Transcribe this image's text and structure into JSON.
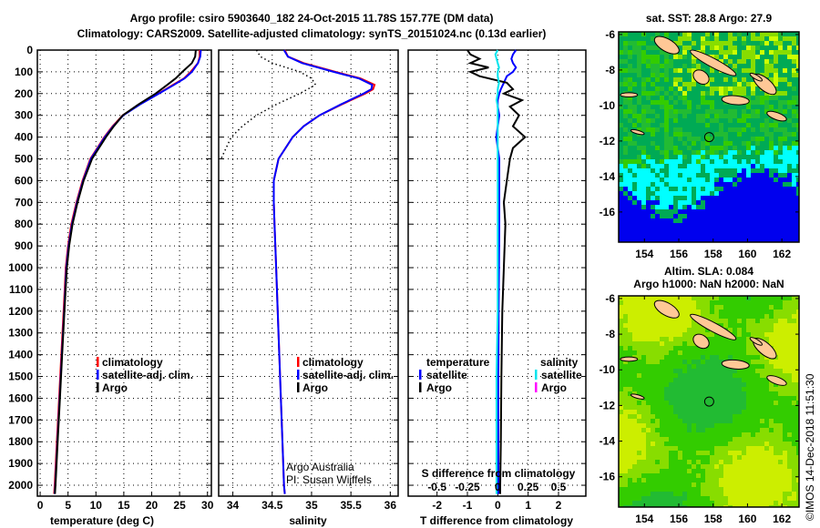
{
  "header": {
    "title1": "Argo profile: csiro 5903640_182 24-Oct-2015 11.78S 157.77E (DM data)",
    "title2": "Climatology: CARS2009. Satellite-adjusted climatology: synTS_20151024.nc (0.13d earlier)"
  },
  "colors": {
    "climatology": "#ff0000",
    "satellite": "#0000ff",
    "argo": "#000000",
    "sal_satellite": "#00e5ee",
    "sal_argo": "#ff00ff"
  },
  "chart_data": [
    {
      "type": "line",
      "title": "",
      "xlabel": "temperature (deg C)",
      "ylabel": "",
      "xlim": [
        -0.5,
        30.7
      ],
      "ylim": [
        2050,
        0
      ],
      "xticks": [
        "0",
        "5",
        "10",
        "15",
        "20",
        "25",
        "30"
      ],
      "yticks": [
        "0",
        "100",
        "200",
        "300",
        "400",
        "500",
        "600",
        "700",
        "800",
        "900",
        "1000",
        "1100",
        "1200",
        "1300",
        "1400",
        "1500",
        "1600",
        "1700",
        "1800",
        "1900",
        "2000"
      ],
      "grid": true,
      "legend": [
        "climatology",
        "satellite-adj. clim.",
        "Argo"
      ],
      "depth": [
        0,
        30,
        60,
        100,
        130,
        160,
        200,
        250,
        300,
        350,
        400,
        500,
        600,
        700,
        800,
        900,
        1000,
        1200,
        1400,
        1600,
        1800,
        2000,
        2040
      ],
      "series": [
        {
          "name": "climatology",
          "values": [
            28.6,
            28.6,
            28.3,
            27.0,
            25.8,
            23.8,
            21.2,
            17.8,
            14.8,
            13.0,
            11.5,
            9.0,
            7.6,
            6.5,
            5.6,
            5.0,
            4.6,
            4.2,
            3.8,
            3.4,
            3.0,
            2.6,
            2.5
          ]
        },
        {
          "name": "satellite-adj. clim.",
          "values": [
            28.8,
            28.7,
            28.3,
            27.2,
            25.9,
            24.0,
            21.3,
            17.9,
            14.9,
            13.1,
            11.6,
            9.1,
            7.7,
            6.6,
            5.7,
            5.1,
            4.7,
            4.3,
            3.9,
            3.5,
            3.1,
            2.7,
            2.6
          ]
        },
        {
          "name": "Argo",
          "values": [
            27.9,
            27.8,
            27.2,
            25.5,
            24.3,
            22.8,
            20.7,
            17.6,
            14.8,
            13.2,
            11.8,
            9.3,
            7.8,
            6.7,
            5.8,
            5.2,
            4.8,
            4.35,
            3.95,
            3.55,
            3.15,
            2.75,
            2.65
          ]
        }
      ]
    },
    {
      "type": "line",
      "xlabel": "salinity",
      "xlim": [
        33.82,
        36.1
      ],
      "ylim": [
        2050,
        0
      ],
      "xticks": [
        "34",
        "34.5",
        "35",
        "35.5",
        "36"
      ],
      "grid": true,
      "legend": [
        "climatology",
        "satellite-adj. clim.",
        "Argo"
      ],
      "depth": [
        0,
        30,
        60,
        100,
        130,
        160,
        180,
        200,
        250,
        300,
        350,
        400,
        500,
        600,
        700,
        800,
        1000,
        1200,
        1500,
        1800,
        2000,
        2040
      ],
      "series": [
        {
          "name": "climatology",
          "values": [
            34.66,
            34.7,
            34.9,
            35.3,
            35.62,
            35.8,
            35.78,
            35.68,
            35.38,
            35.1,
            34.9,
            34.76,
            34.58,
            34.52,
            34.52,
            34.53,
            34.55,
            34.57,
            34.6,
            34.63,
            34.65,
            34.66
          ]
        },
        {
          "name": "satellite-adj. clim.",
          "values": [
            34.65,
            34.7,
            34.88,
            35.28,
            35.6,
            35.77,
            35.76,
            35.66,
            35.37,
            35.1,
            34.9,
            34.76,
            34.58,
            34.52,
            34.52,
            34.53,
            34.55,
            34.57,
            34.6,
            34.63,
            34.65,
            34.66
          ]
        },
        {
          "name": "Argo",
          "style": "dotted",
          "values": [
            34.3,
            34.35,
            34.5,
            34.85,
            35.0,
            35.05,
            34.95,
            34.85,
            34.55,
            34.3,
            34.12,
            33.98,
            33.85,
            null,
            null,
            null,
            null,
            null,
            null,
            null,
            null,
            null
          ]
        }
      ],
      "annotations": [
        "Argo Australia",
        "PI: Susan Wijffels"
      ]
    },
    {
      "type": "line",
      "xlabel": "T difference from climatology",
      "xlim": [
        -2.95,
        2.9
      ],
      "xticks": [
        "-2",
        "-1",
        "0",
        "1",
        "2"
      ],
      "secondary_xlabel": "S difference from climatology",
      "secondary_xticks": [
        "-0.5",
        "-0.25",
        "0",
        "0.25",
        "0.5"
      ],
      "grid": true,
      "legend_temperature": {
        "title": "temperature",
        "items": [
          "satellite",
          "Argo"
        ]
      },
      "legend_salinity": {
        "title": "salinity",
        "items": [
          "satellite",
          "Argo"
        ]
      },
      "depth": [
        0,
        20,
        40,
        60,
        80,
        100,
        120,
        150,
        180,
        200,
        230,
        260,
        300,
        350,
        400,
        450,
        500,
        600,
        700,
        800,
        1000,
        1200,
        1500,
        1800,
        2000,
        2040
      ],
      "series": [
        {
          "name": "temperature satellite",
          "values": [
            0.6,
            0.5,
            0.45,
            0.5,
            0.6,
            0.5,
            0.3,
            0.2,
            0.1,
            0.05,
            0.0,
            0.0,
            0.05,
            0.0,
            -0.05,
            0.0,
            0.05,
            0.05,
            0.05,
            0.05,
            0.04,
            0.03,
            0.02,
            0.02,
            0.02,
            0.02
          ]
        },
        {
          "name": "temperature Argo",
          "values": [
            -1.0,
            -0.9,
            -0.6,
            -0.9,
            -0.3,
            -0.9,
            -0.6,
            0.3,
            0.5,
            0.2,
            0.8,
            0.4,
            0.7,
            0.5,
            0.9,
            0.5,
            0.4,
            0.3,
            0.2,
            0.25,
            0.2,
            0.15,
            0.12,
            0.1,
            0.08,
            0.08
          ]
        },
        {
          "name": "salinity satellite",
          "values": [
            0.0,
            -0.02,
            -0.01,
            0.0,
            0.01,
            0.0,
            0.0,
            0.01,
            0.0,
            0.0,
            -0.01,
            0.0,
            0.0,
            0.0,
            0.0,
            0.0,
            0.0,
            0.0,
            0.0,
            0.0,
            0.0,
            0.0,
            -0.01,
            -0.01,
            -0.01,
            -0.01
          ]
        }
      ]
    },
    {
      "type": "heatmap",
      "title": "sat. SST: 28.8 Argo: 27.9",
      "xlim": [
        152.5,
        163.0
      ],
      "ylim": [
        -17.7,
        -5.85
      ],
      "xticks": [
        "154",
        "156",
        "158",
        "160",
        "162"
      ],
      "yticks": [
        "-6",
        "-8",
        "-10",
        "-12",
        "-14",
        "-16"
      ],
      "marker": {
        "lon": 157.77,
        "lat": -11.78
      }
    },
    {
      "type": "heatmap",
      "title": "Altim. SLA: 0.084",
      "subtitle": "Argo h1000: NaN h2000: NaN",
      "xlim": [
        152.5,
        163.0
      ],
      "ylim": [
        -17.7,
        -5.85
      ],
      "xticks": [
        "154",
        "156",
        "158",
        "160",
        "162"
      ],
      "yticks": [
        "-6",
        "-8",
        "-10",
        "-12",
        "-14",
        "-16"
      ],
      "marker": {
        "lon": 157.77,
        "lat": -11.78
      }
    }
  ],
  "credit": "©IMOS 14-Dec-2018 11:51:30"
}
